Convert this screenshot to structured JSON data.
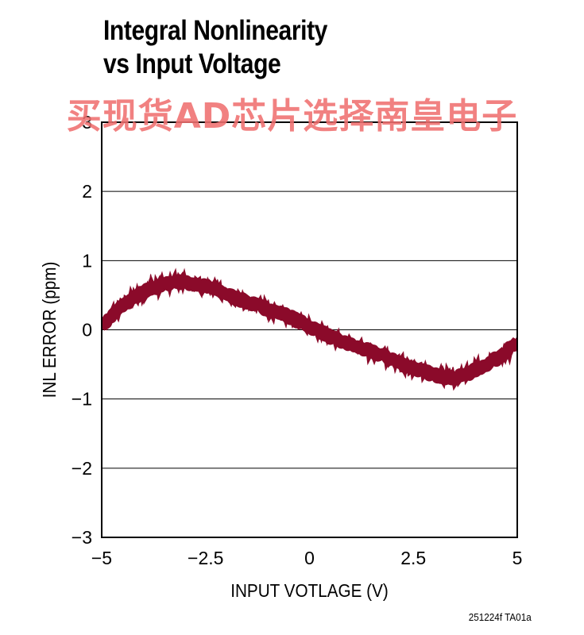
{
  "title_lines": [
    "Integral Nonlinearity",
    "vs Input Voltage"
  ],
  "watermark": "买现货AD芯片选择南皇电子",
  "footnote": "251224f TA01a",
  "colors": {
    "trace": "#8b0a2a",
    "grid": "#000000",
    "watermark": "#f07070"
  },
  "chart_data": {
    "type": "line",
    "title": "Integral Nonlinearity vs Input Voltage",
    "xlabel": "INPUT VOTLAGE (V)",
    "ylabel": "INL ERROR (ppm)",
    "xlim": [
      -5,
      5
    ],
    "ylim": [
      -3,
      3
    ],
    "x_ticks": [
      -5,
      -2.5,
      0,
      2.5,
      5
    ],
    "x_tick_labels": [
      "−5",
      "−2.5",
      "0",
      "2.5",
      "5"
    ],
    "y_ticks": [
      -3,
      -2,
      -1,
      0,
      1,
      2,
      3
    ],
    "y_tick_labels": [
      "−3",
      "−2",
      "−1",
      "0",
      "1",
      "2",
      "3"
    ],
    "grid": "horizontal",
    "series": [
      {
        "x": [
          -5,
          -4.75,
          -4.5,
          -4.25,
          -4,
          -3.75,
          -3.5,
          -3.25,
          -3,
          -2.75,
          -2.5,
          -2.25,
          -2,
          -1.75,
          -1.5,
          -1.25,
          -1,
          -0.75,
          -0.5,
          -0.25,
          0,
          0.25,
          0.5,
          0.75,
          1,
          1.25,
          1.5,
          1.75,
          2,
          2.25,
          2.5,
          2.75,
          3,
          3.25,
          3.5,
          3.75,
          4,
          4.25,
          4.5,
          4.75,
          5
        ],
        "y": [
          0.05,
          0.2,
          0.35,
          0.45,
          0.55,
          0.6,
          0.65,
          0.7,
          0.68,
          0.65,
          0.63,
          0.58,
          0.52,
          0.45,
          0.4,
          0.35,
          0.3,
          0.25,
          0.2,
          0.12,
          0.05,
          -0.02,
          -0.1,
          -0.17,
          -0.22,
          -0.27,
          -0.32,
          -0.37,
          -0.42,
          -0.5,
          -0.55,
          -0.6,
          -0.65,
          -0.68,
          -0.7,
          -0.65,
          -0.58,
          -0.5,
          -0.42,
          -0.3,
          -0.2
        ]
      }
    ]
  }
}
